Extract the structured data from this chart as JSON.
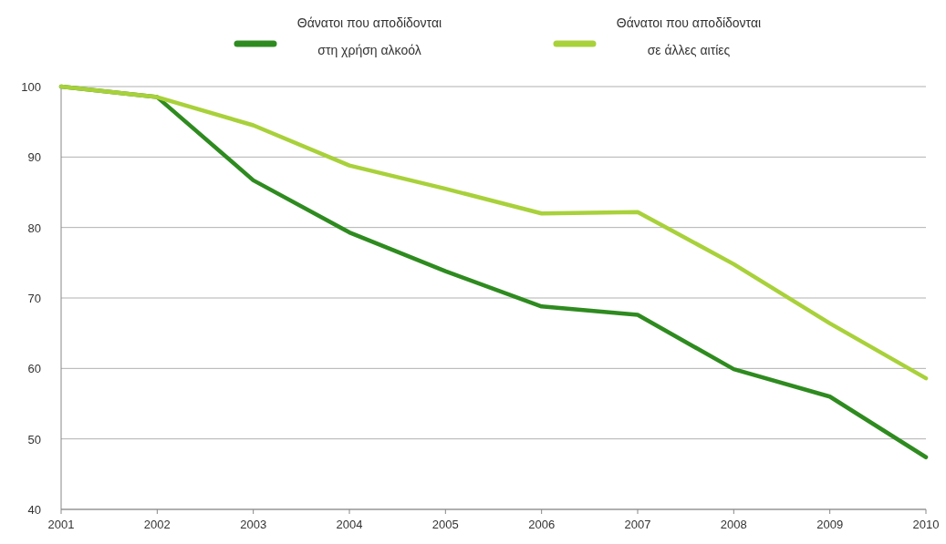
{
  "chart_data": {
    "type": "line",
    "x": [
      2001,
      2002,
      2003,
      2004,
      2005,
      2006,
      2007,
      2008,
      2009,
      2010
    ],
    "series": [
      {
        "name": "Θάνατοι που αποδίδονται στη χρήση αλκοόλ",
        "color": "#2e8b1f",
        "values": [
          100,
          98.5,
          86.7,
          79.3,
          73.8,
          68.8,
          67.6,
          59.9,
          56,
          47.4
        ]
      },
      {
        "name": "Θάνατοι που αποδίδονται σε άλλες αιτίες",
        "color": "#a8d13a",
        "values": [
          100,
          98.5,
          94.5,
          88.8,
          85.5,
          82,
          82.2,
          74.8,
          66.4,
          58.6
        ]
      }
    ],
    "xlim": [
      2001,
      2010
    ],
    "xticks": [
      2001,
      2002,
      2003,
      2004,
      2005,
      2006,
      2007,
      2008,
      2009,
      2010
    ],
    "ylim": [
      40,
      100
    ],
    "yticks": [
      40,
      50,
      60,
      70,
      80,
      90,
      100
    ],
    "grid": "y",
    "legend": "top",
    "marker": "none",
    "line_style": "solid"
  }
}
